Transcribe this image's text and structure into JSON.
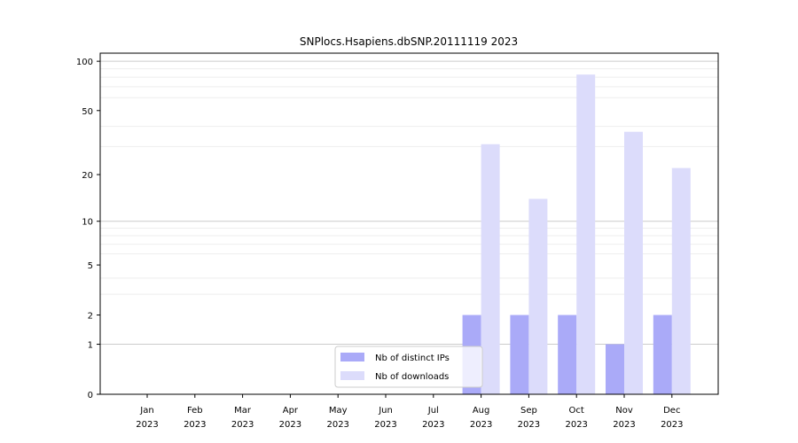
{
  "chart_data": {
    "type": "bar",
    "title": "SNPlocs.Hsapiens.dbSNP.20111119 2023",
    "xlabel": "",
    "ylabel": "",
    "categories": [
      [
        "Jan",
        "2023"
      ],
      [
        "Feb",
        "2023"
      ],
      [
        "Mar",
        "2023"
      ],
      [
        "Apr",
        "2023"
      ],
      [
        "May",
        "2023"
      ],
      [
        "Jun",
        "2023"
      ],
      [
        "Jul",
        "2023"
      ],
      [
        "Aug",
        "2023"
      ],
      [
        "Sep",
        "2023"
      ],
      [
        "Oct",
        "2023"
      ],
      [
        "Nov",
        "2023"
      ],
      [
        "Dec",
        "2023"
      ]
    ],
    "series": [
      {
        "name": "Nb of distinct IPs",
        "color": "#aaaaf8",
        "values": [
          0,
          0,
          0,
          0,
          0,
          0,
          0,
          2,
          2,
          2,
          1,
          2
        ]
      },
      {
        "name": "Nb of downloads",
        "color": "#dcdcfb",
        "values": [
          0,
          0,
          0,
          0,
          0,
          0,
          0,
          31,
          14,
          83,
          37,
          22
        ]
      }
    ],
    "y_scale": "log1p",
    "yticks": [
      0,
      1,
      2,
      5,
      10,
      20,
      50,
      100
    ],
    "ylim": [
      0,
      112
    ],
    "grid": "horizontal",
    "legend_position": "lower-center"
  }
}
